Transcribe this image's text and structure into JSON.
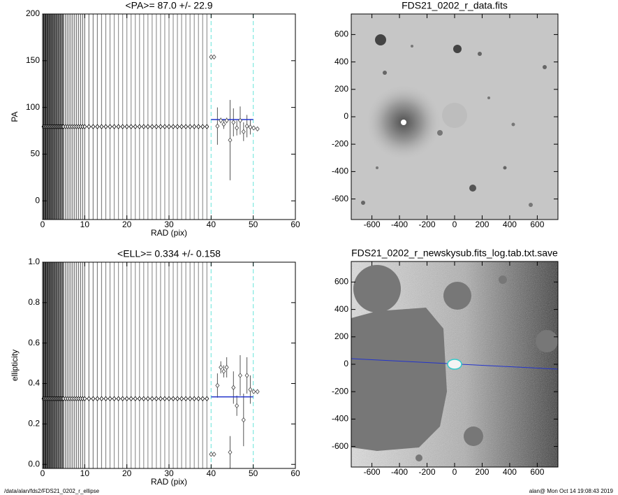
{
  "chart_data": [
    {
      "type": "profile",
      "title": "<PA>=  87.0 +/-  22.9",
      "xlabel": "RAD (pix)",
      "ylabel": "PA",
      "xlim": [
        0,
        60
      ],
      "ylim": [
        -20,
        200
      ],
      "xticks": [
        0,
        10,
        20,
        30,
        40,
        50,
        60
      ],
      "yticks": [
        0,
        50,
        100,
        150,
        200
      ],
      "inner": {
        "x": [
          0.25,
          0.5,
          0.75,
          1,
          1.25,
          1.5,
          1.75,
          2,
          2.25,
          2.5,
          2.75,
          3,
          3.25,
          3.5,
          3.75,
          4,
          4.25,
          4.5,
          4.75,
          5,
          5.5,
          6,
          6.5,
          7,
          7.5,
          8,
          8.5,
          9,
          9.5,
          10,
          11,
          12,
          13,
          14,
          15,
          16,
          17,
          18,
          19,
          20,
          21,
          22,
          23,
          24,
          25,
          26,
          27,
          28,
          29,
          30,
          31,
          32,
          33,
          34,
          35,
          36,
          37,
          38,
          39
        ],
        "values": [
          79.4,
          79.4,
          79.4,
          79.4,
          79.4,
          79.4,
          79.4,
          79.4,
          79.4,
          79.4,
          79.4,
          79.4,
          79.4,
          79.4,
          79.4,
          79.4,
          79.4,
          79.4,
          79.4,
          79.4,
          79.4,
          79.4,
          79.4,
          79.4,
          79.4,
          79.4,
          79.4,
          79.4,
          79.4,
          79.4,
          79.4,
          79.4,
          79.4,
          79.4,
          79.4,
          79.4,
          79.4,
          79.4,
          79.4,
          79.4,
          79.4,
          79.4,
          79.4,
          79.4,
          79.4,
          79.4,
          79.4,
          79.4,
          79.4,
          79.4,
          79.4,
          79.4,
          79.4,
          79.4,
          79.4,
          79.4,
          79.4,
          79.4,
          79.4
        ]
      },
      "outer": {
        "x": [
          40.0,
          40.7,
          41.5,
          42.3,
          43.0,
          43.7,
          44.5,
          45.3,
          46.1,
          46.9,
          47.7,
          48.5,
          49.3,
          50.1,
          51.0
        ],
        "values": [
          154,
          154,
          80,
          86,
          82,
          86,
          65,
          84,
          78,
          86,
          74,
          80,
          79,
          78,
          77
        ],
        "errors": [
          0,
          0,
          20,
          3,
          5,
          3,
          43,
          15,
          8,
          15,
          10,
          12,
          8,
          0,
          0
        ]
      },
      "mean": 87.0,
      "guides": [
        40,
        50
      ]
    },
    {
      "type": "image",
      "title": "FDS21_0202_r_data.fits",
      "xlim": [
        -750,
        750
      ],
      "ylim": [
        -750,
        750
      ],
      "xticks": [
        -600,
        -400,
        -200,
        0,
        200,
        400,
        600
      ],
      "yticks": [
        -600,
        -400,
        -200,
        0,
        200,
        400,
        600
      ]
    },
    {
      "type": "profile",
      "title": "<ELL>= 0.334 +/-  0.158",
      "xlabel": "RAD (pix)",
      "ylabel": "ellipticity",
      "xlim": [
        0,
        60
      ],
      "ylim": [
        -0.02,
        1.0
      ],
      "xticks": [
        0,
        10,
        20,
        30,
        40,
        50,
        60
      ],
      "yticks": [
        {
          "value": 0,
          "label": "0.0"
        },
        0.2,
        0.4,
        0.6,
        0.8,
        {
          "value": 1,
          "label": "1.0"
        }
      ],
      "inner": {
        "x": [
          0.25,
          0.5,
          0.75,
          1,
          1.25,
          1.5,
          1.75,
          2,
          2.25,
          2.5,
          2.75,
          3,
          3.25,
          3.5,
          3.75,
          4,
          4.25,
          4.5,
          4.75,
          5,
          5.5,
          6,
          6.5,
          7,
          7.5,
          8,
          8.5,
          9,
          9.5,
          10,
          11,
          12,
          13,
          14,
          15,
          16,
          17,
          18,
          19,
          20,
          21,
          22,
          23,
          24,
          25,
          26,
          27,
          28,
          29,
          30,
          31,
          32,
          33,
          34,
          35,
          36,
          37,
          38,
          39
        ],
        "values": [
          0.325,
          0.325,
          0.325,
          0.325,
          0.325,
          0.325,
          0.325,
          0.325,
          0.325,
          0.325,
          0.325,
          0.325,
          0.325,
          0.325,
          0.325,
          0.325,
          0.325,
          0.325,
          0.325,
          0.325,
          0.325,
          0.325,
          0.325,
          0.325,
          0.325,
          0.325,
          0.325,
          0.325,
          0.325,
          0.325,
          0.325,
          0.325,
          0.325,
          0.325,
          0.325,
          0.325,
          0.325,
          0.325,
          0.325,
          0.325,
          0.325,
          0.325,
          0.325,
          0.325,
          0.325,
          0.325,
          0.325,
          0.325,
          0.325,
          0.325,
          0.325,
          0.325,
          0.325,
          0.325,
          0.325,
          0.325,
          0.325,
          0.325,
          0.325
        ]
      },
      "outer": {
        "x": [
          40.0,
          40.7,
          41.5,
          42.3,
          43.0,
          43.7,
          44.5,
          45.3,
          46.1,
          46.9,
          47.7,
          48.5,
          49.3,
          50.1,
          51.0
        ],
        "values": [
          0.05,
          0.05,
          0.39,
          0.48,
          0.46,
          0.48,
          0.06,
          0.38,
          0.29,
          0.44,
          0.22,
          0.44,
          0.37,
          0.36,
          0.36
        ],
        "errors": [
          0,
          0,
          0.06,
          0.03,
          0.03,
          0.05,
          0.08,
          0.08,
          0.05,
          0.1,
          0.13,
          0.09,
          0.07,
          0,
          0
        ]
      },
      "mean": 0.334,
      "guides": [
        40,
        50
      ]
    },
    {
      "type": "image",
      "title": "FDS21_0202_r_newskysub.fits_log.tab.txt.save",
      "xlim": [
        -750,
        750
      ],
      "ylim": [
        -750,
        750
      ],
      "xticks": [
        -600,
        -400,
        -200,
        0,
        200,
        400,
        600
      ],
      "yticks": [
        -600,
        -400,
        -200,
        0,
        200,
        400,
        600
      ]
    }
  ],
  "footer": {
    "left": "/data/alan/fds2/FDS21_0202_r_ellipse",
    "right": "alan@  Mon Oct 14 19:08:43 2019"
  }
}
